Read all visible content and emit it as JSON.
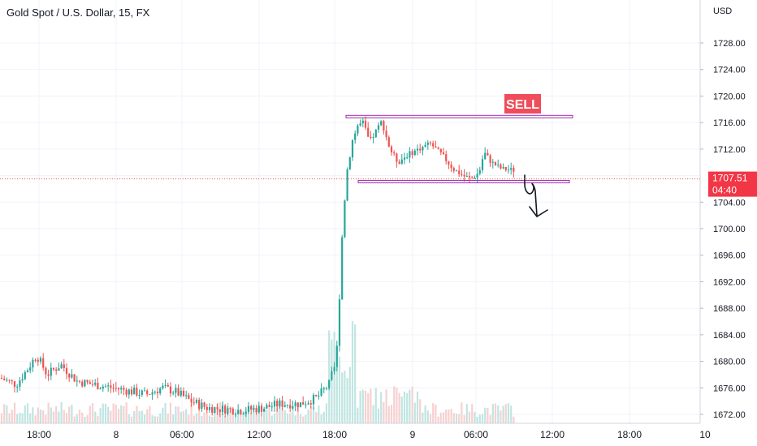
{
  "header": {
    "title": "Gold Spot / U.S. Dollar, 15, FX"
  },
  "axis": {
    "currency": "USD"
  },
  "chart_data": {
    "type": "candlestick",
    "title": "Gold Spot / U.S. Dollar, 15, FX",
    "y_axis_label": "USD",
    "ylim": [
      1670.4,
      1732.0
    ],
    "y_ticks": [
      1672,
      1676,
      1680,
      1684,
      1688,
      1692,
      1696,
      1700,
      1704,
      1708,
      1712,
      1716,
      1720,
      1724,
      1728
    ],
    "x_ticks": [
      "18:00",
      "8",
      "06:00",
      "12:00",
      "18:00",
      "9",
      "06:00",
      "12:00",
      "18:00",
      "10"
    ],
    "current_price": {
      "value": "1707.51",
      "countdown": "04:40",
      "level": 1707.51
    },
    "annotations": {
      "sell_label": "SELL",
      "resistance_level": 1716.9,
      "support_level": 1707.1
    },
    "colors": {
      "up": "#26a69a",
      "down": "#ef5350",
      "zone": "#9c27b0",
      "volume_up": "#b2dfdb",
      "volume_down": "#f5c6c5"
    },
    "phases": [
      {
        "segment": "pre-rally chop",
        "approx_range": [
          1672.5,
          1681.5
        ]
      },
      {
        "segment": "rally",
        "approx_range": [
          1676,
          1716.5
        ]
      },
      {
        "segment": "consolidation",
        "approx_range": [
          1707.2,
          1716.6
        ]
      }
    ],
    "grid": true
  }
}
